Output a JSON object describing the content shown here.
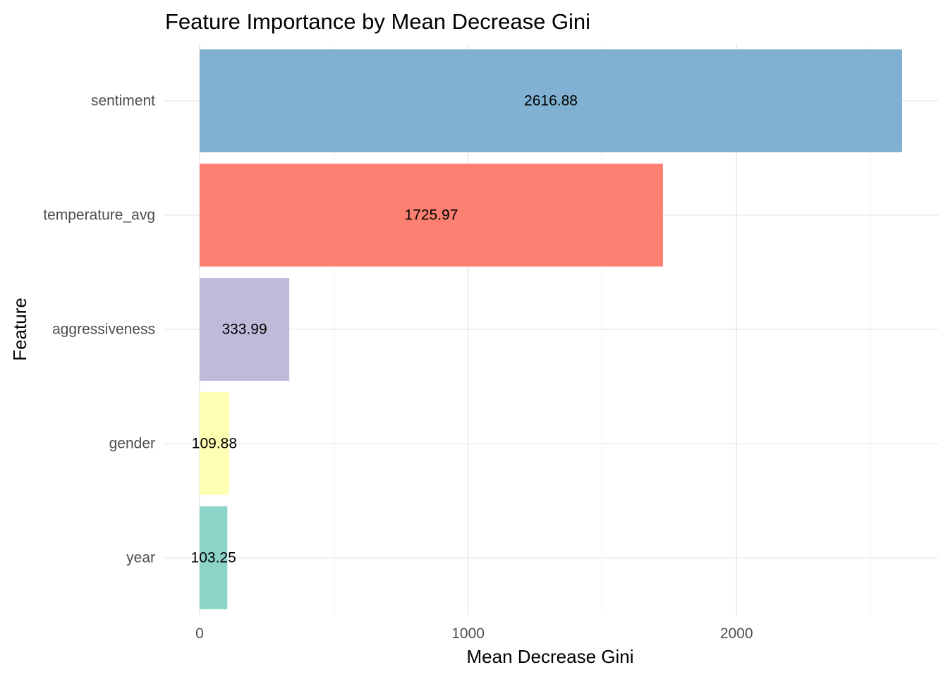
{
  "chart_data": {
    "type": "bar",
    "orientation": "horizontal",
    "title": "Feature Importance by Mean Decrease Gini",
    "xlabel": "Mean Decrease Gini",
    "ylabel": "Feature",
    "categories": [
      "sentiment",
      "temperature_avg",
      "aggressiveness",
      "gender",
      "year"
    ],
    "values": [
      2616.88,
      1725.97,
      333.99,
      109.88,
      103.25
    ],
    "value_labels": [
      "2616.88",
      "1725.97",
      "333.99",
      "109.88",
      "103.25"
    ],
    "colors": [
      "#80b1d3",
      "#fb8072",
      "#bebada",
      "#ffffb3",
      "#8dd3c7"
    ],
    "xlim": [
      0,
      2750
    ],
    "x_ticks": [
      0,
      1000,
      2000
    ],
    "x_tick_labels": [
      "0",
      "1000",
      "2000"
    ],
    "x_minor_ticks": [
      500,
      1500,
      2500
    ],
    "grid": true,
    "legend": "none"
  }
}
